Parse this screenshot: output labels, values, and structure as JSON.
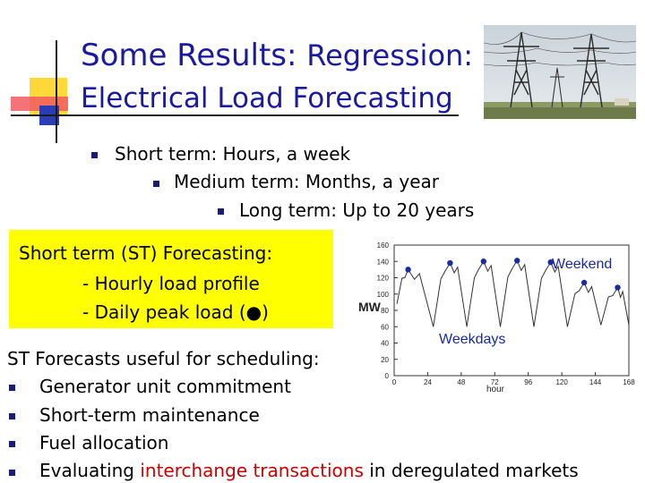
{
  "title": {
    "part1": "Some Results:",
    "part2": "Regression:",
    "line2": "Electrical Load Forecasting"
  },
  "bullets": [
    "Short term: Hours, a week",
    "Medium term: Months, a year",
    "Long term: Up to 20 years"
  ],
  "st_box": {
    "line1": "Short term (ST) Forecasting:",
    "line2": "- Hourly load profile",
    "line3": "- Daily peak load (●)"
  },
  "uses": {
    "heading": "ST Forecasts useful for scheduling:",
    "items": [
      "Generator unit commitment",
      "Short-term maintenance",
      "Fuel allocation"
    ],
    "last_prefix": "Evaluating ",
    "last_red": "interchange transactions",
    "last_suffix": " in deregulated markets"
  },
  "colors": {
    "title": "#1a1aa0",
    "box": "#ffff00",
    "accent_red": "#cc0000",
    "peak_dot": "#1a2aa0"
  },
  "chart_data": {
    "type": "line",
    "xlabel": "hour",
    "ylabel": "MW",
    "xticks": [
      "0",
      "24",
      "48",
      "72",
      "96",
      "120",
      "144",
      "168"
    ],
    "yticks": [
      "0",
      "20",
      "40",
      "60",
      "80",
      "100",
      "120",
      "140",
      "160"
    ],
    "xlim": [
      0,
      168
    ],
    "ylim": [
      0,
      160
    ],
    "annotations": [
      "Weekend",
      "Weekdays"
    ],
    "grid": false,
    "daily_peaks": [
      {
        "x": 10,
        "y": 130
      },
      {
        "x": 40,
        "y": 138
      },
      {
        "x": 64,
        "y": 140
      },
      {
        "x": 88,
        "y": 141
      },
      {
        "x": 112,
        "y": 139
      },
      {
        "x": 136,
        "y": 114
      },
      {
        "x": 160,
        "y": 108
      }
    ],
    "daily_troughs": [
      {
        "x": 2,
        "y": 88
      },
      {
        "x": 28,
        "y": 60
      },
      {
        "x": 52,
        "y": 60
      },
      {
        "x": 76,
        "y": 60
      },
      {
        "x": 100,
        "y": 60
      },
      {
        "x": 124,
        "y": 60
      },
      {
        "x": 148,
        "y": 62
      },
      {
        "x": 168,
        "y": 62
      }
    ]
  }
}
